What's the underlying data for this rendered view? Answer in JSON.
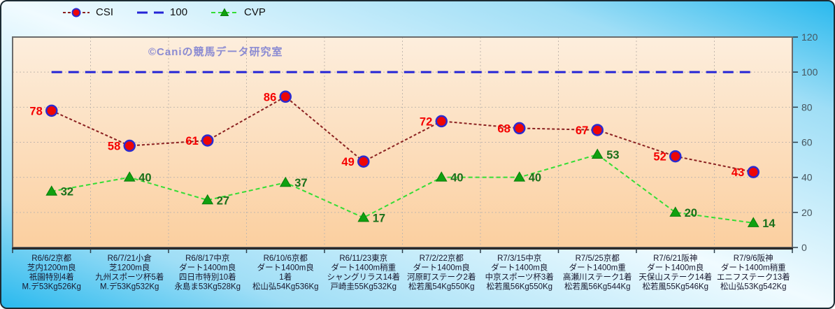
{
  "watermark": "©Caniの競馬データ研究室",
  "chart_data": {
    "type": "line",
    "title": "",
    "xlabel": "",
    "ylabel": "",
    "ylim": [
      0,
      120
    ],
    "yticks": [
      0,
      20,
      40,
      60,
      80,
      100,
      120
    ],
    "grid": true,
    "legend_position": "top",
    "categories": [
      [
        "R6/6/2京都",
        "芝内1200m良",
        "祇園特別4着",
        "M.デ53Kg526Kg"
      ],
      [
        "R6/7/21小倉",
        "芝1200m良",
        "九州スポーツ杯5着",
        "M.デ53Kg532Kg"
      ],
      [
        "R6/8/17中京",
        "ダート1400m良",
        "四日市特別10着",
        "永島ま53Kg528Kg"
      ],
      [
        "R6/10/6京都",
        "ダート1400m良",
        "1着",
        "松山弘54Kg536Kg"
      ],
      [
        "R6/11/23東京",
        "ダート1400m稍重",
        "シャングリラス14着",
        "戸崎圭55Kg532Kg"
      ],
      [
        "R7/2/22京都",
        "ダート1400m良",
        "河原町ステーク2着",
        "松若風54Kg550Kg"
      ],
      [
        "R7/3/15中京",
        "ダート1400m良",
        "中京スポーツ杯3着",
        "松若風56Kg550Kg"
      ],
      [
        "R7/5/25京都",
        "ダート1400m重",
        "高瀬川ステーク1着",
        "松若風56Kg544Kg"
      ],
      [
        "R7/6/21阪神",
        "ダート1400m良",
        "天保山ステーク14着",
        "松若風55Kg546Kg"
      ],
      [
        "R7/9/6阪神",
        "ダート1400m稍重",
        "エニフステーク13着",
        "松山弘53Kg542Kg"
      ]
    ],
    "series": [
      {
        "name": "CSI",
        "values": [
          78,
          58,
          61,
          86,
          49,
          72,
          68,
          67,
          52,
          43
        ],
        "line_color": "#8b2121",
        "line_dash": "4 3",
        "line_width": 2,
        "marker": "circle",
        "marker_fill": "#ee0606",
        "marker_stroke": "#2b2bd0",
        "label_color": "#f50000",
        "label_side": "left"
      },
      {
        "name": "100",
        "values": [
          100,
          100,
          100,
          100,
          100,
          100,
          100,
          100,
          100,
          100
        ],
        "line_color": "#2424d6",
        "line_dash": "15 9",
        "line_width": 3,
        "marker": "none",
        "label_side": "none"
      },
      {
        "name": "CVP",
        "values": [
          32,
          40,
          27,
          37,
          17,
          40,
          40,
          53,
          20,
          14
        ],
        "line_color": "#35dd35",
        "line_dash": "6 4",
        "line_width": 2,
        "marker": "triangle",
        "marker_fill": "#10a010",
        "marker_stroke": "#0a7d0a",
        "label_color": "#1a701a",
        "label_side": "right"
      }
    ],
    "colors": {
      "plot_bg_top": "#fdeedd",
      "plot_bg_bottom": "#fbcf9f",
      "plot_border": "#6b6b6b",
      "plot_border_bottom": "#2a2a2a",
      "grid": "#c3b8ae",
      "tick": "#2c3e4a",
      "axis_label": "#46555e",
      "category_label": "#16162c",
      "outer_cyan": "#29b9ee",
      "outer_light": "#f0fbff",
      "watermark": "#8a8ad2"
    }
  }
}
